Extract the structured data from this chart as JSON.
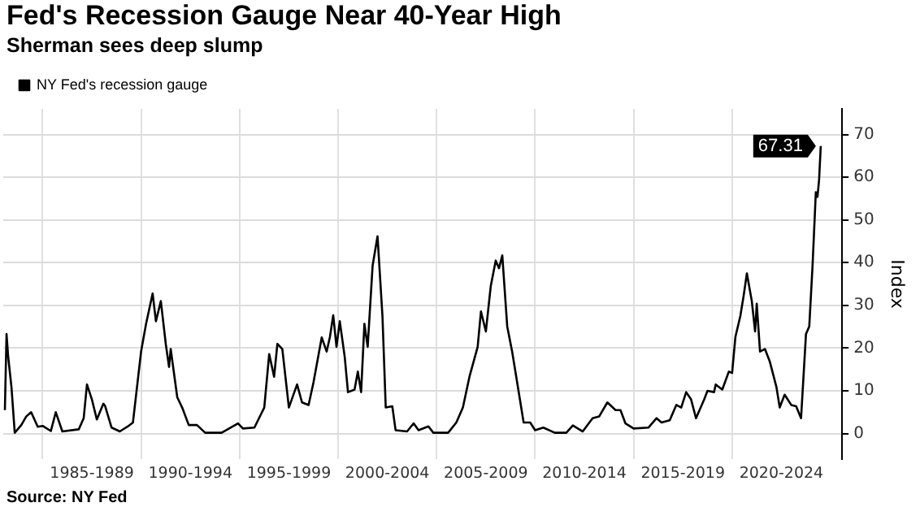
{
  "chart_data": {
    "type": "line",
    "title": "Fed's Recession Gauge Near 40-Year High",
    "subtitle": "Sherman sees deep slump",
    "ylabel": "Index",
    "annotations": [
      "Source: NY Fed"
    ],
    "xlim": [
      "1983-01",
      "2025-08"
    ],
    "xticks": [
      {
        "value": "1985-01",
        "label": null
      },
      {
        "value": "1987-07",
        "label": "1985-1989"
      },
      {
        "value": "1990-01",
        "label": null
      },
      {
        "value": "1992-07",
        "label": "1990-1994"
      },
      {
        "value": "1995-01",
        "label": null
      },
      {
        "value": "1997-07",
        "label": "1995-1999"
      },
      {
        "value": "2000-01",
        "label": null
      },
      {
        "value": "2002-07",
        "label": "2000-2004"
      },
      {
        "value": "2005-01",
        "label": null
      },
      {
        "value": "2007-07",
        "label": "2005-2009"
      },
      {
        "value": "2010-01",
        "label": null
      },
      {
        "value": "2012-07",
        "label": "2010-2014"
      },
      {
        "value": "2015-01",
        "label": null
      },
      {
        "value": "2017-07",
        "label": "2015-2019"
      },
      {
        "value": "2020-01",
        "label": null
      },
      {
        "value": "2022-07",
        "label": "2020-2024"
      }
    ],
    "ylim": [
      -6,
      76
    ],
    "yticks": [
      0,
      10,
      20,
      30,
      40,
      50,
      60,
      70
    ],
    "grid": true,
    "legend": "top left",
    "marker": "none",
    "line_style": "solid",
    "series": [
      {
        "name": "NY Fed's recession gauge",
        "color": "#000000",
        "x": [
          "1983-02",
          "1983-03",
          "1983-04",
          "1983-06",
          "1983-08",
          "1983-12",
          "1984-03",
          "1984-06",
          "1984-10",
          "1985-01",
          "1985-06",
          "1985-09",
          "1986-01",
          "1986-11",
          "1987-02",
          "1987-04",
          "1987-07",
          "1987-10",
          "1988-02",
          "1988-03",
          "1988-07",
          "1988-12",
          "1989-05",
          "1989-08",
          "1990-01",
          "1990-04",
          "1990-08",
          "1990-10",
          "1991-01",
          "1991-04",
          "1991-06",
          "1991-07",
          "1991-11",
          "1992-02",
          "1992-06",
          "1992-11",
          "1993-04",
          "1994-02",
          "1994-12",
          "1995-03",
          "1995-10",
          "1996-04",
          "1996-07",
          "1996-10",
          "1996-12",
          "1997-03",
          "1997-07",
          "1997-12",
          "1998-03",
          "1998-07",
          "1998-10",
          "1999-03",
          "1999-06",
          "1999-08",
          "1999-10",
          "1999-12",
          "2000-02",
          "2000-05",
          "2000-07",
          "2000-11",
          "2001-01",
          "2001-03",
          "2001-05",
          "2001-07",
          "2001-10",
          "2002-01",
          "2002-04",
          "2002-06",
          "2002-10",
          "2002-12",
          "2003-07",
          "2003-11",
          "2004-02",
          "2004-08",
          "2004-11",
          "2005-08",
          "2006-01",
          "2006-05",
          "2006-09",
          "2007-02",
          "2007-04",
          "2007-07",
          "2007-10",
          "2008-01",
          "2008-03",
          "2008-05",
          "2008-08",
          "2008-11",
          "2009-02",
          "2009-06",
          "2009-10",
          "2010-01",
          "2010-06",
          "2011-01",
          "2011-08",
          "2011-12",
          "2012-06",
          "2012-12",
          "2013-04",
          "2013-09",
          "2014-02",
          "2014-05",
          "2014-08",
          "2015-01",
          "2015-10",
          "2016-03",
          "2016-06",
          "2016-11",
          "2017-03",
          "2017-06",
          "2017-09",
          "2017-12",
          "2018-03",
          "2018-08",
          "2018-10",
          "2019-02",
          "2019-03",
          "2019-07",
          "2019-11",
          "2020-01",
          "2020-03",
          "2020-06",
          "2020-08",
          "2020-10",
          "2021-01",
          "2021-03",
          "2021-04",
          "2021-06",
          "2021-09",
          "2021-12",
          "2022-04",
          "2022-06",
          "2022-09",
          "2023-01",
          "2023-04",
          "2023-07",
          "2023-10",
          "2023-12",
          "2024-02",
          "2024-04",
          "2024-05",
          "2024-06",
          "2024-07"
        ],
        "values": [
          5.5,
          23.3,
          18,
          10.9,
          0.2,
          2,
          4,
          5,
          1.6,
          1.8,
          0.6,
          5,
          0.5,
          1,
          3.6,
          11.5,
          8,
          3.3,
          7,
          6.5,
          1.4,
          0.5,
          1.7,
          2.6,
          19.3,
          25.7,
          32.8,
          26.3,
          31,
          21,
          15.6,
          19.8,
          8.5,
          6.1,
          2,
          2,
          0.2,
          0.2,
          2.4,
          1.2,
          1.4,
          6.1,
          18.6,
          13.3,
          21,
          19.8,
          6.1,
          11.5,
          7.3,
          6.7,
          12,
          22.5,
          19.2,
          22.6,
          27.7,
          20.3,
          26.3,
          18,
          9.7,
          10.3,
          14.5,
          9.7,
          25.7,
          20.3,
          39.3,
          46.2,
          27.5,
          6.1,
          6.4,
          0.8,
          0.5,
          2.4,
          0.8,
          1.7,
          0.2,
          0.2,
          2.6,
          6.1,
          13.3,
          20.3,
          28.6,
          23.9,
          34.6,
          40.5,
          38.7,
          41.7,
          25.1,
          19.2,
          12.1,
          2.6,
          2.6,
          0.8,
          1.4,
          0.2,
          0.2,
          1.9,
          0.5,
          3.6,
          4,
          7.3,
          5.5,
          5.5,
          2.4,
          1.2,
          1.4,
          3.6,
          2.6,
          3.1,
          6.7,
          6.1,
          9.7,
          8,
          3.6,
          8,
          10,
          9.7,
          11.5,
          10.3,
          14.5,
          14.2,
          22.6,
          27.5,
          32.2,
          37.5,
          31,
          23.9,
          30.4,
          19.2,
          19.8,
          16.8,
          10.9,
          6.1,
          9.1,
          6.7,
          6.4,
          3.6,
          23.3,
          25.1,
          39.3,
          56.5,
          55.4,
          59.5,
          67.31
        ],
        "value_labels": [
          null,
          null,
          null,
          null,
          null,
          null,
          null,
          null,
          null,
          null,
          null,
          null,
          null,
          null,
          null,
          null,
          null,
          null,
          null,
          null,
          null,
          null,
          null,
          null,
          null,
          null,
          null,
          null,
          null,
          null,
          null,
          null,
          null,
          null,
          null,
          null,
          null,
          null,
          null,
          null,
          null,
          null,
          null,
          null,
          null,
          null,
          null,
          null,
          null,
          null,
          null,
          null,
          null,
          null,
          null,
          null,
          null,
          null,
          null,
          null,
          null,
          null,
          null,
          null,
          null,
          null,
          null,
          null,
          null,
          null,
          null,
          null,
          null,
          null,
          null,
          null,
          null,
          null,
          null,
          null,
          null,
          null,
          null,
          null,
          null,
          null,
          null,
          null,
          null,
          null,
          null,
          null,
          null,
          null,
          null,
          null,
          null,
          null,
          null,
          null,
          null,
          null,
          null,
          null,
          null,
          null,
          null,
          null,
          null,
          null,
          null,
          null,
          null,
          null,
          null,
          null,
          null,
          null,
          null,
          null,
          null,
          null,
          null,
          null,
          null,
          null,
          null,
          null,
          null,
          null,
          null,
          null,
          null,
          null,
          null,
          null,
          null,
          null,
          null,
          null,
          null,
          null,
          "67.31"
        ]
      }
    ]
  }
}
